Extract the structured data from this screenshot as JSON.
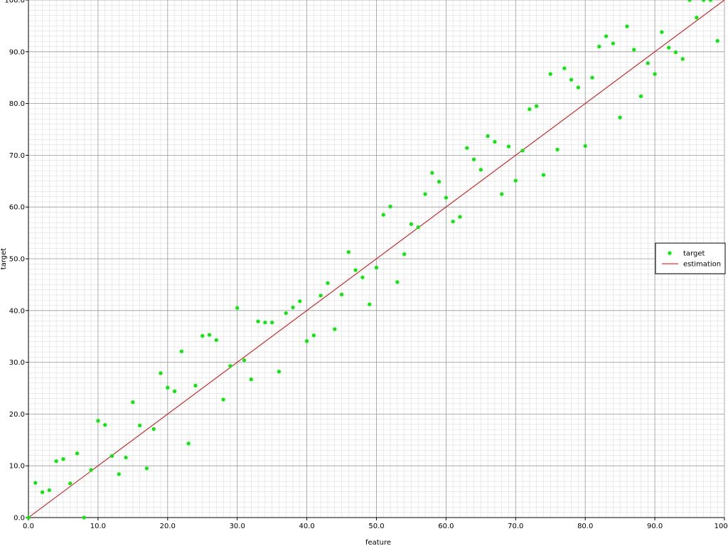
{
  "chart_data": {
    "type": "scatter",
    "title": "",
    "xlabel": "feature",
    "ylabel": "target",
    "xlim": [
      0,
      100
    ],
    "ylim": [
      0,
      100
    ],
    "xticks": [
      0,
      10,
      20,
      30,
      40,
      50,
      60,
      70,
      80,
      90,
      100
    ],
    "yticks": [
      0,
      10,
      20,
      30,
      40,
      50,
      60,
      70,
      80,
      90,
      100
    ],
    "xtick_labels": [
      "0.0",
      "10.0",
      "20.0",
      "30.0",
      "40.0",
      "50.0",
      "60.0",
      "70.0",
      "80.0",
      "90.0",
      "100.0"
    ],
    "ytick_labels": [
      "0.0",
      "10.0",
      "20.0",
      "30.0",
      "40.0",
      "50.0",
      "60.0",
      "70.0",
      "80.0",
      "90.0",
      "100.0"
    ],
    "grid": true,
    "minor_grid": true,
    "legend_position": "right",
    "series": [
      {
        "name": "target",
        "kind": "scatter",
        "color": "#00ee00",
        "x": [
          0,
          1,
          2,
          3,
          4,
          5,
          6,
          7,
          8,
          9,
          10,
          11,
          12,
          13,
          14,
          15,
          16,
          17,
          18,
          19,
          20,
          21,
          22,
          23,
          24,
          25,
          26,
          27,
          28,
          29,
          30,
          31,
          32,
          33,
          34,
          35,
          36,
          37,
          38,
          39,
          40,
          41,
          42,
          43,
          44,
          45,
          46,
          47,
          48,
          49,
          50,
          51,
          52,
          53,
          54,
          55,
          56,
          57,
          58,
          59,
          60,
          61,
          62,
          63,
          64,
          65,
          66,
          67,
          68,
          69,
          70,
          71,
          72,
          73,
          74,
          75,
          76,
          77,
          78,
          79,
          80,
          81,
          82,
          83,
          84,
          85,
          86,
          87,
          88,
          89,
          90,
          91,
          92,
          93,
          94,
          95,
          96,
          97,
          98,
          99
        ],
        "y": [
          0,
          6.7,
          4.9,
          5.3,
          10.9,
          11.3,
          6.6,
          12.4,
          0,
          9.2,
          18.7,
          17.9,
          11.9,
          8.4,
          11.6,
          22.3,
          17.8,
          9.5,
          17.1,
          27.9,
          25.1,
          24.4,
          32.1,
          14.3,
          25.5,
          35.1,
          35.3,
          34.3,
          22.8,
          29.3,
          40.5,
          30.4,
          26.7,
          37.9,
          37.7,
          37.7,
          28.2,
          39.5,
          40.6,
          41.8,
          34.1,
          35.2,
          42.9,
          45.3,
          36.4,
          43.1,
          51.3,
          47.8,
          46.4,
          41.2,
          48.3,
          58.5,
          60.1,
          45.5,
          50.9,
          56.7,
          56.1,
          62.5,
          66.6,
          64.9,
          61.8,
          57.2,
          58.1,
          71.4,
          69.2,
          67.2,
          73.7,
          72.6,
          62.5,
          71.7,
          65.1,
          70.9,
          78.9,
          79.5,
          66.2,
          85.7,
          71.1,
          86.8,
          84.6,
          83.1,
          71.8,
          85,
          91,
          93,
          91.6,
          77.3,
          94.9,
          90.4,
          81.4,
          87.8,
          85.7,
          93.8,
          90.8,
          89.9,
          88.6,
          100,
          96.6,
          100,
          100,
          92.1
        ]
      },
      {
        "name": "estimation",
        "kind": "line",
        "color": "#dd0000",
        "x": [
          0,
          100
        ],
        "y": [
          0,
          100
        ]
      }
    ]
  }
}
